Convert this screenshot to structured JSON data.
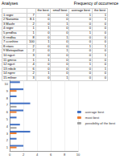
{
  "header": {
    "left": "Analyses",
    "right": "Frequency of occurrence"
  },
  "table": {
    "columns": [
      "the best",
      "small best",
      "average best",
      "the best"
    ],
    "rows": [
      [
        "1 regnr",
        "7",
        "0",
        "0",
        "1",
        "1"
      ],
      [
        "2 Nanomix",
        "8.1",
        "0",
        "0",
        "0",
        "1"
      ],
      [
        "3 Mashr",
        "2",
        "0",
        "1",
        "0",
        "0"
      ],
      [
        "4 regnr",
        "1",
        "1",
        "0",
        "0",
        "0"
      ],
      [
        "5 prndlsa",
        "1",
        "0",
        "0",
        "1",
        "0"
      ],
      [
        "6 rrndlsa",
        "8",
        "0",
        "1",
        "0",
        "0"
      ],
      [
        "7 ccsnhtre",
        "100",
        "1",
        "0",
        "0",
        "0"
      ],
      [
        "8 rrtwrc",
        "2",
        "0",
        "0",
        "1",
        "1"
      ],
      [
        "9 Metropolitan",
        "2",
        "0",
        "1",
        "0",
        "0"
      ],
      [
        "10 ngcrt",
        "3",
        "0",
        "0",
        "0",
        "1"
      ],
      [
        "11 gmrsx",
        "1",
        "1",
        "0",
        "0",
        "0"
      ],
      [
        "12 ngcrt",
        "4",
        "0",
        "0",
        "1",
        "0"
      ],
      [
        "13 rnbcb",
        "6",
        "0",
        "0",
        "0",
        "1"
      ],
      [
        "14 ngrnr",
        "2",
        "1",
        "0",
        "0",
        "0"
      ],
      [
        "15 mfiner",
        "3",
        "0",
        "1",
        "0",
        "0"
      ]
    ]
  },
  "chart_data": {
    "type": "bar",
    "orientation": "horizontal",
    "categories": [
      "1",
      "2",
      "3",
      "4",
      "5",
      "6",
      "7",
      "8",
      "9",
      "10"
    ],
    "series": [
      {
        "name": "average best",
        "color": "#4472c4",
        "values": [
          2,
          1,
          3,
          1.5,
          1,
          2,
          3,
          1,
          2,
          1.5
        ]
      },
      {
        "name": "most best",
        "color": "#ed7d31",
        "values": [
          1,
          0,
          1,
          0,
          0,
          1,
          0,
          0,
          1,
          0
        ]
      },
      {
        "name": "possibility of the best",
        "color": "#a5a5a5",
        "values": [
          0,
          0,
          0,
          1,
          0,
          0,
          1,
          0,
          0,
          0
        ]
      }
    ],
    "xlim": [
      0,
      10
    ],
    "xticks": [
      0,
      2,
      4,
      6,
      8,
      10
    ],
    "grid": true,
    "legend": "right"
  }
}
